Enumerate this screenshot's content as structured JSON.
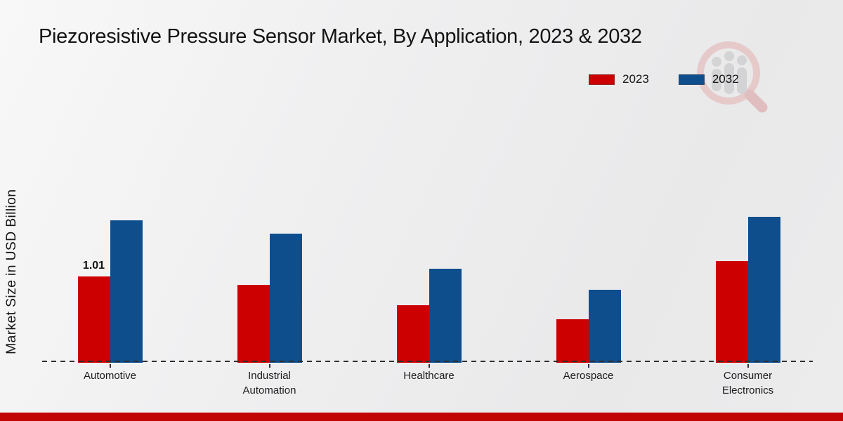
{
  "title": "Piezoresistive Pressure Sensor Market, By Application, 2023 & 2032",
  "ylabel": "Market Size in USD Billion",
  "colors": {
    "series_2023": "#CC0001",
    "series_2032": "#0F4E8D",
    "footer_strip": "#C10404",
    "baseline": "#2E2E2E"
  },
  "watermark": "magnifier-bars-logo",
  "chart_data": {
    "type": "bar",
    "title": "Piezoresistive Pressure Sensor Market, By Application, 2023 & 2032",
    "xlabel": "",
    "ylabel": "Market Size in USD Billion",
    "categories": [
      "Automotive",
      "Industrial Automation",
      "Healthcare",
      "Aerospace",
      "Consumer Electronics"
    ],
    "series": [
      {
        "name": "2023",
        "color": "#CC0001",
        "values": [
          1.01,
          0.91,
          0.67,
          0.51,
          1.19
        ]
      },
      {
        "name": "2032",
        "color": "#0F4E8D",
        "values": [
          1.67,
          1.51,
          1.1,
          0.85,
          1.71
        ]
      }
    ],
    "value_labels": [
      {
        "series": "2023",
        "category": "Automotive",
        "text": "1.01"
      }
    ],
    "ylim": [
      0,
      1.8
    ],
    "grid": false,
    "y_axis_ticks_visible": false,
    "baseline_style": "dashed",
    "legend_position": "top-right"
  }
}
